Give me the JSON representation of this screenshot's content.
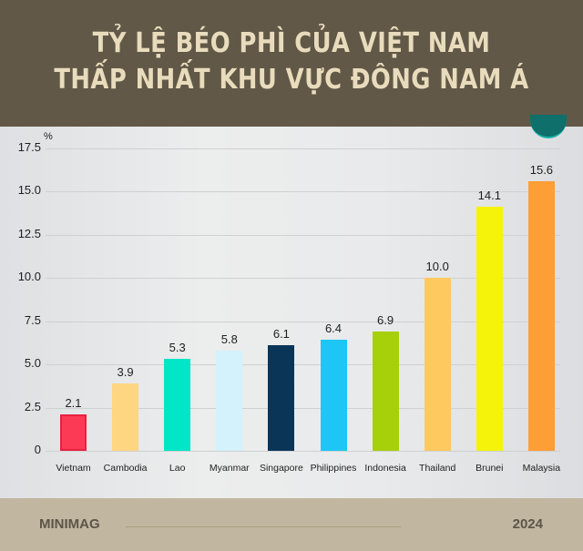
{
  "header": {
    "title_line1": "TỶ LỆ BÉO PHÌ CỦA VIỆT NAM",
    "title_line2": "THẤP NHẤT KHU VỰC ĐÔNG NAM Á",
    "background": "#615847",
    "text_color": "#e9dcbd"
  },
  "footer": {
    "brand": "MINIMAG",
    "year": "2024",
    "background": "#c1b6a0"
  },
  "chart_data": {
    "type": "bar",
    "title": "TỶ LỆ BÉO PHÌ CỦA VIỆT NAM THẤP NHẤT KHU VỰC ĐÔNG NAM Á",
    "xlabel": "",
    "ylabel": "%",
    "ylim": [
      0,
      17.5
    ],
    "yticks": [
      "0",
      "2.5",
      "5.0",
      "7.5",
      "10.0",
      "12.5",
      "15.0",
      "17.5"
    ],
    "grid": true,
    "categories": [
      "Vietnam",
      "Cambodia",
      "Lao",
      "Myanmar",
      "Singapore",
      "Philippines",
      "Indonesia",
      "Thailand",
      "Brunei",
      "Malaysia"
    ],
    "values": [
      2.1,
      3.9,
      5.3,
      5.8,
      6.1,
      6.4,
      6.9,
      10.0,
      14.1,
      15.6
    ],
    "labels": [
      "2.1",
      "3.9",
      "5.3",
      "5.8",
      "6.1",
      "6.4",
      "6.9",
      "10.0",
      "14.1",
      "15.6"
    ],
    "colors": [
      "#fd3a55",
      "#fed682",
      "#00e6c7",
      "#d4f2fb",
      "#0b3556",
      "#1ec6f6",
      "#a6d00a",
      "#fec95f",
      "#f5f30a",
      "#fd9e36"
    ]
  }
}
